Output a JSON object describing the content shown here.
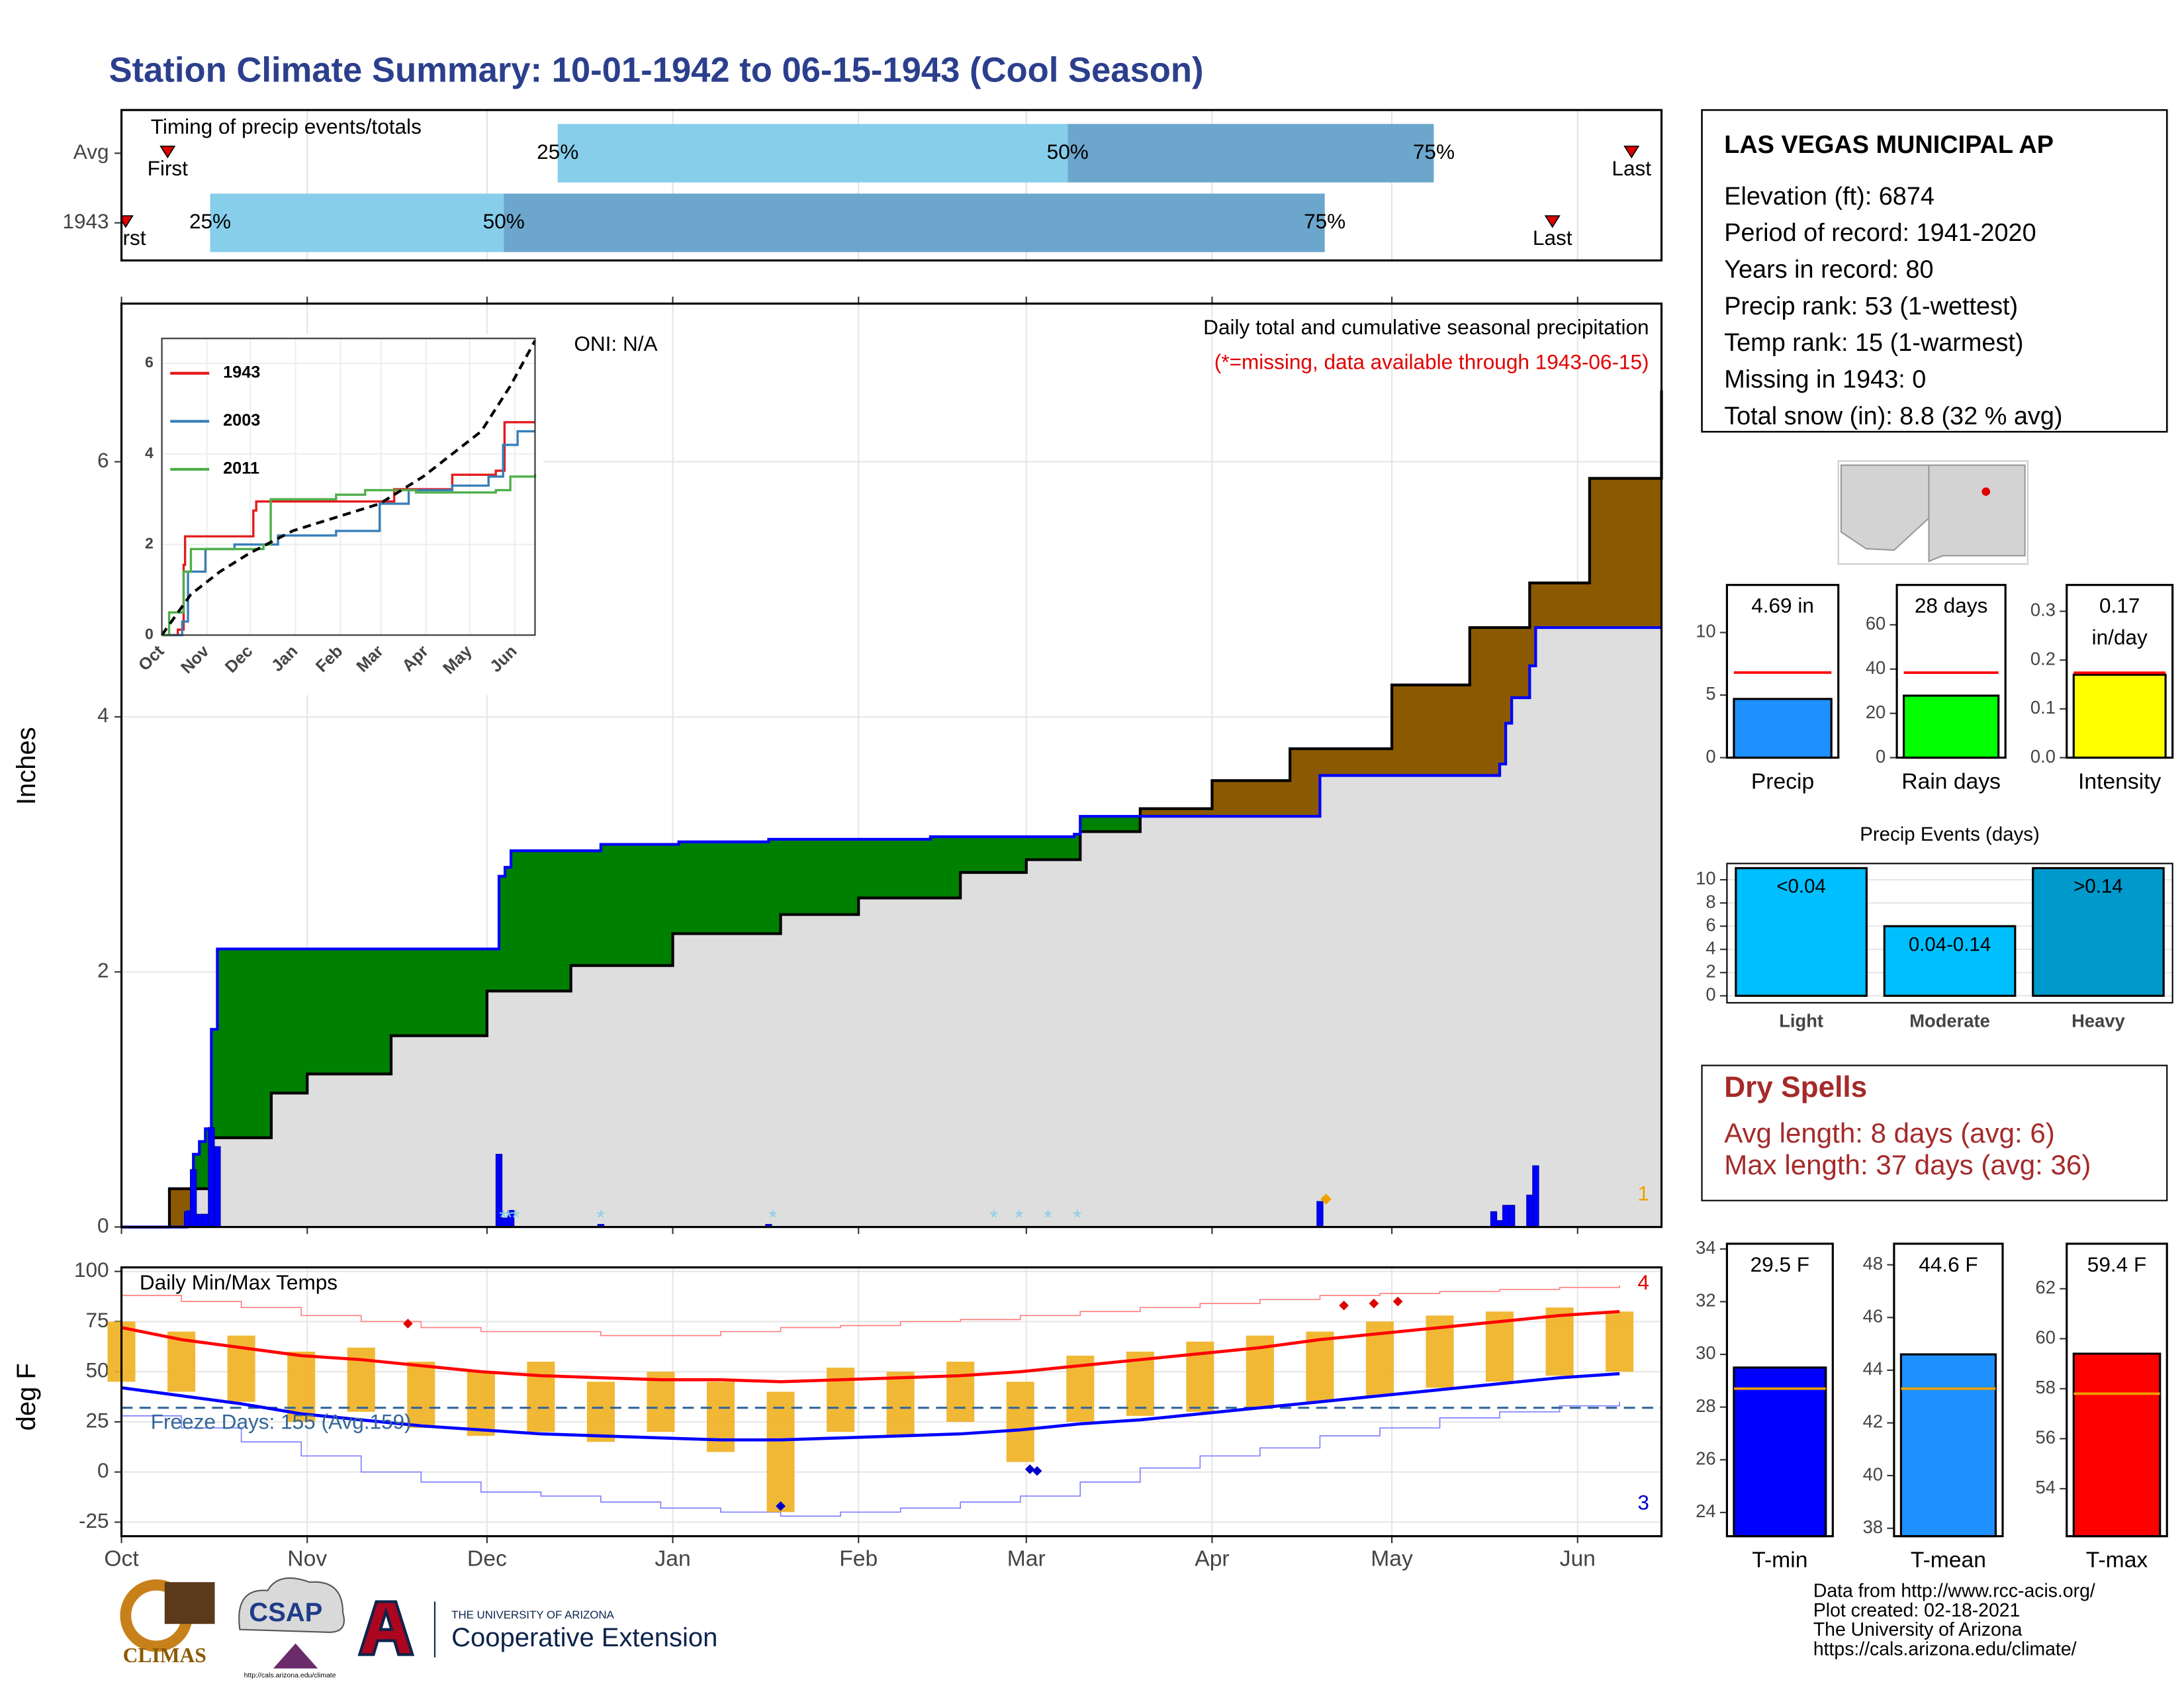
{
  "page_title": "Station Climate Summary: 10-01-1942 to 06-15-1943 (Cool Season)",
  "chart_data": [
    {
      "type": "timing",
      "title": "Timing of precip events/totals",
      "xlim": [
        0,
        257
      ],
      "colors": [
        "#87ceeb",
        "#6ca6cd",
        "#e00000"
      ],
      "marker_labels": {
        "first": "First",
        "q25": "25%",
        "q50": "50%",
        "q75": "75%",
        "last": "Last"
      },
      "rows": [
        {
          "name": "Avg",
          "first": 7.7,
          "q25": 72.8,
          "q50": 157.9,
          "q75": 219,
          "last": 252
        },
        {
          "name": "1943",
          "first": 0.7,
          "q25": 14.8,
          "q50": 63.8,
          "q75": 200.8,
          "last": 238.8
        }
      ]
    },
    {
      "type": "cumulative_precip",
      "ylabel": "Inches",
      "xlim": [
        0,
        257
      ],
      "ylim": [
        0,
        7.24
      ],
      "yticks": [
        0,
        2,
        4,
        6
      ],
      "grid": true,
      "annotations": [
        "ONI: N/A",
        "Daily total and cumulative seasonal precipitation",
        "(*=missing, data available through 1943-06-15)",
        "1"
      ],
      "fill_colors": {
        "above": "#008000",
        "below": "#8b5a00",
        "base": "#dedede"
      },
      "series": [
        {
          "color": "#0000ff",
          "x": [
            0,
            11,
            12,
            13,
            14,
            15,
            16,
            61,
            63,
            64,
            65,
            80,
            93,
            108,
            135,
            159,
            160,
            200,
            230,
            231,
            232,
            235,
            236,
            257
          ],
          "values": [
            0,
            0.12,
            0.57,
            0.67,
            0.77,
            1.55,
            2.18,
            2.18,
            2.75,
            2.82,
            2.95,
            3.0,
            3.02,
            3.04,
            3.06,
            3.08,
            3.22,
            3.54,
            3.63,
            3.95,
            4.15,
            4.4,
            4.7,
            4.7
          ]
        },
        {
          "color": "#000000",
          "x": [
            0,
            8,
            15,
            25,
            31,
            45,
            61,
            75,
            92,
            110,
            123,
            140,
            151,
            160,
            170,
            182,
            195,
            212,
            225,
            235,
            245,
            257
          ],
          "values": [
            0,
            0.3,
            0.7,
            1.05,
            1.2,
            1.5,
            1.85,
            2.05,
            2.3,
            2.45,
            2.58,
            2.78,
            2.88,
            3.1,
            3.28,
            3.5,
            3.75,
            4.25,
            4.7,
            5.05,
            5.87,
            6.56
          ]
        }
      ],
      "daily": {
        "color": "#0000ff",
        "x": [
          11,
          12,
          13,
          14,
          15,
          16,
          63,
          64,
          65,
          80,
          108,
          200,
          229,
          230,
          231,
          232,
          235,
          236
        ],
        "values": [
          0.12,
          0.45,
          0.1,
          0.1,
          0.78,
          0.63,
          0.57,
          0.07,
          0.13,
          0.02,
          0.02,
          0.2,
          0.12,
          0.05,
          0.17,
          0.17,
          0.25,
          0.48
        ]
      },
      "missing": {
        "label": "*",
        "color": "#87ceeb",
        "x": [
          63.7,
          64.6,
          65.8,
          80,
          108.7,
          145.6,
          149.8,
          154.6,
          159.5
        ]
      },
      "trace": {
        "color": "#f0a000",
        "x": [
          201
        ]
      }
    },
    {
      "type": "inset_lines",
      "xlim": [
        0,
        257
      ],
      "ylim": [
        0,
        6.55
      ],
      "yticks": [
        0,
        2,
        4,
        6
      ],
      "legend": "top-left",
      "xticks": [
        {
          "value": 0,
          "label": "Oct"
        },
        {
          "value": 31,
          "label": "Nov"
        },
        {
          "value": 61,
          "label": "Dec"
        },
        {
          "value": 92,
          "label": "Jan"
        },
        {
          "value": 123,
          "label": "Feb"
        },
        {
          "value": 151,
          "label": "Mar"
        },
        {
          "value": 182,
          "label": "Apr"
        },
        {
          "value": 212,
          "label": "May"
        },
        {
          "value": 243,
          "label": "Jun"
        }
      ],
      "series": [
        {
          "name": "1943",
          "color": "#e41a1c",
          "x": [
            0,
            11,
            15,
            16,
            61,
            63,
            65,
            160,
            200,
            230,
            236,
            257
          ],
          "values": [
            0,
            0.12,
            1.55,
            2.18,
            2.18,
            2.75,
            2.95,
            3.22,
            3.54,
            3.63,
            4.7,
            4.7
          ]
        },
        {
          "name": "2003",
          "color": "#377eb8",
          "x": [
            0,
            14,
            18,
            30,
            50,
            80,
            120,
            150,
            170,
            200,
            225,
            235,
            245,
            257
          ],
          "values": [
            0,
            0.3,
            1.4,
            1.9,
            2.0,
            2.2,
            2.3,
            2.9,
            3.2,
            3.3,
            3.5,
            4.2,
            4.5,
            4.5
          ]
        },
        {
          "name": "2011",
          "color": "#4daf4a",
          "x": [
            0,
            5,
            15,
            20,
            70,
            75,
            120,
            140,
            175,
            230,
            240,
            257
          ],
          "values": [
            0,
            0.5,
            1.4,
            1.9,
            2.0,
            3.0,
            3.1,
            3.2,
            3.15,
            3.2,
            3.5,
            3.55
          ]
        },
        {
          "color": "#000000",
          "dashed": true,
          "x": [
            0,
            20,
            40,
            60,
            90,
            120,
            150,
            180,
            200,
            220,
            240,
            257
          ],
          "values": [
            0,
            0.9,
            1.4,
            1.8,
            2.3,
            2.6,
            2.9,
            3.5,
            4.0,
            4.5,
            5.5,
            6.5
          ]
        }
      ]
    },
    {
      "type": "temperature",
      "title": "Daily Min/Max Temps",
      "ylabel": "deg F",
      "xlim": [
        0,
        257
      ],
      "ylim": [
        -32,
        102
      ],
      "yticks": [
        -25,
        0,
        25,
        50,
        75,
        100
      ],
      "grid": true,
      "xticks": [
        {
          "value": 0,
          "label": "Oct"
        },
        {
          "value": 31,
          "label": "Nov"
        },
        {
          "value": 61,
          "label": "Dec"
        },
        {
          "value": 92,
          "label": "Jan"
        },
        {
          "value": 123,
          "label": "Feb"
        },
        {
          "value": 151,
          "label": "Mar"
        },
        {
          "value": 182,
          "label": "Apr"
        },
        {
          "value": 212,
          "label": "May"
        },
        {
          "value": 243,
          "label": "Jun"
        }
      ],
      "annotations": [
        "Freeze Days: 155 (Avg.159)",
        "4",
        "3"
      ],
      "freeze_line": 32,
      "x": [
        0,
        10,
        20,
        30,
        40,
        50,
        60,
        70,
        80,
        90,
        100,
        110,
        120,
        130,
        140,
        150,
        160,
        170,
        180,
        190,
        200,
        210,
        220,
        230,
        240,
        250
      ],
      "daily_low": [
        45,
        40,
        35,
        25,
        30,
        22,
        18,
        20,
        15,
        20,
        10,
        -20,
        20,
        18,
        25,
        5,
        25,
        28,
        30,
        32,
        35,
        38,
        42,
        45,
        48,
        50
      ],
      "daily_high": [
        75,
        70,
        68,
        60,
        62,
        55,
        50,
        55,
        45,
        50,
        45,
        40,
        52,
        50,
        55,
        45,
        58,
        60,
        65,
        68,
        70,
        75,
        78,
        80,
        82,
        80
      ],
      "series": [
        {
          "color": "#ff0000",
          "width": 2.2,
          "values": [
            72,
            66,
            62,
            58,
            56,
            53,
            50,
            48,
            47,
            46,
            46,
            45,
            46,
            47,
            48,
            50,
            53,
            56,
            59,
            62,
            66,
            69,
            72,
            75,
            78,
            80
          ]
        },
        {
          "color": "#0000ff",
          "width": 2.2,
          "values": [
            42,
            38,
            34,
            29,
            26,
            23,
            21,
            19,
            18,
            17,
            16,
            16,
            17,
            18,
            19,
            21,
            24,
            26,
            29,
            32,
            35,
            38,
            41,
            44,
            47,
            49
          ]
        },
        {
          "color": "#ff8080",
          "width": 0.8,
          "values": [
            88,
            85,
            82,
            78,
            75,
            72,
            70,
            70,
            68,
            68,
            70,
            72,
            73,
            75,
            76,
            78,
            80,
            82,
            84,
            86,
            88,
            89,
            90,
            91,
            92,
            93
          ]
        },
        {
          "color": "#8080ff",
          "width": 0.8,
          "values": [
            28,
            22,
            15,
            8,
            0,
            -5,
            -10,
            -12,
            -15,
            -18,
            -20,
            -22,
            -20,
            -18,
            -15,
            -12,
            -5,
            2,
            8,
            12,
            18,
            22,
            27,
            30,
            33,
            35
          ]
        }
      ],
      "bar_color": "#f0b020",
      "record_high_points": {
        "color": "#e00000",
        "x": [
          47.8,
          204,
          209,
          213
        ],
        "values": [
          74,
          83,
          84,
          85
        ]
      },
      "record_low_points": {
        "color": "#0000cc",
        "x": [
          110,
          151.6,
          152.8
        ],
        "values": [
          -17,
          1.4,
          0.5
        ]
      }
    },
    {
      "type": "bar",
      "categories": [
        "Precip"
      ],
      "values": [
        4.69
      ],
      "value_labels": [
        "4.69 in"
      ],
      "color": "#1e90ff",
      "average": 6.8,
      "average_color": "#ff0000",
      "ylim": [
        0,
        13.8
      ],
      "yticks": [
        0,
        5,
        10
      ]
    },
    {
      "type": "bar",
      "categories": [
        "Rain days"
      ],
      "values": [
        28
      ],
      "value_labels": [
        "28 days"
      ],
      "color": "#00ff00",
      "average": 38.4,
      "average_color": "#ff0000",
      "ylim": [
        0,
        78
      ],
      "yticks": [
        0,
        20,
        40,
        60
      ]
    },
    {
      "type": "bar",
      "categories": [
        "Intensity"
      ],
      "values": [
        0.17
      ],
      "value_labels": [
        "0.17 in/day"
      ],
      "color": "#ffff00",
      "average": 0.174,
      "average_color": "#ff0000",
      "ylim": [
        0,
        0.354
      ],
      "yticks": [
        {
          "value": 0,
          "label": "0.0"
        },
        {
          "value": 0.1,
          "label": "0.1"
        },
        {
          "value": 0.2,
          "label": "0.2"
        },
        {
          "value": 0.3,
          "label": "0.3"
        }
      ]
    },
    {
      "type": "events",
      "title": "Precip Events (days)",
      "categories": [
        "Light",
        "Moderate",
        "Heavy"
      ],
      "values": [
        11,
        6,
        11
      ],
      "bar_labels": [
        "<0.04",
        "0.04-0.14",
        ">0.14"
      ],
      "colors": [
        "#00bfff",
        "#00bfff",
        "#0099cc"
      ],
      "ylim": [
        -0.6,
        11.4
      ],
      "yticks": [
        0,
        2,
        4,
        6,
        8,
        10
      ],
      "grid": true
    },
    {
      "type": "bar",
      "categories": [
        "T-min"
      ],
      "values": [
        29.5
      ],
      "value_labels": [
        "29.5 F"
      ],
      "color": "#0000ff",
      "average": 28.7,
      "average_color": "#f0a000",
      "ylim": [
        23.1,
        34.2
      ],
      "yticks": [
        24,
        26,
        28,
        30,
        32,
        34
      ]
    },
    {
      "type": "bar",
      "categories": [
        "T-mean"
      ],
      "values": [
        44.6
      ],
      "value_labels": [
        "44.6 F"
      ],
      "color": "#1e90ff",
      "average": 43.3,
      "average_color": "#f0a000",
      "ylim": [
        37.7,
        48.8
      ],
      "yticks": [
        38,
        40,
        42,
        44,
        46,
        48
      ]
    },
    {
      "type": "bar",
      "categories": [
        "T-max"
      ],
      "values": [
        59.4
      ],
      "value_labels": [
        "59.4 F"
      ],
      "color": "#ff0000",
      "average": 57.8,
      "average_color": "#f0a000",
      "ylim": [
        52.1,
        63.8
      ],
      "yticks": [
        54,
        56,
        58,
        60,
        62
      ]
    }
  ],
  "station": {
    "name": "LAS VEGAS MUNICIPAL AP",
    "lines": [
      "Elevation (ft): 6874",
      "Period of record: 1941-2020",
      "Years in record: 80",
      "Precip rank: 53 (1-wettest)",
      "Temp rank: 15 (1-warmest)",
      "Missing in 1943: 0",
      "Total snow (in): 8.8 (32 % avg)"
    ]
  },
  "dry_spells": {
    "title": "Dry Spells",
    "lines": [
      "Avg length: 8 days (avg: 6)",
      "Max length: 37 days (avg: 36)"
    ]
  },
  "footer": {
    "lines": [
      "Data from http://www.rcc-acis.org/",
      "Plot created: 02-18-2021",
      "The University of Arizona",
      "https://cals.arizona.edu/climate/"
    ]
  },
  "logos": {
    "climas": "CLIMAS",
    "csap": "CSAP",
    "csap_url": "http://cals.arizona.edu/climate",
    "university": "THE UNIVERSITY OF ARIZONA",
    "extension": "Cooperative Extension"
  }
}
